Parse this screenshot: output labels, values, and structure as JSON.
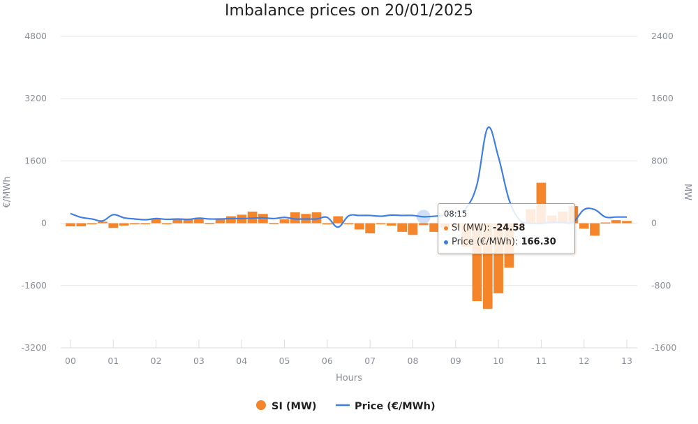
{
  "chart_data": {
    "type": "bar",
    "title": "Imbalance prices on 20/01/2025",
    "xlabel": "Hours",
    "ylabel_left": "€/MWh",
    "ylabel_right": "MW",
    "ylim_left": [
      -3200,
      4800
    ],
    "ylim_right": [
      -1600,
      2400
    ],
    "yticks_left": [
      "4800",
      "3200",
      "1600",
      "0",
      "-1600",
      "-3200"
    ],
    "yticks_right": [
      "2400",
      "1600",
      "800",
      "0",
      "-800",
      "-1600"
    ],
    "xticks": [
      "00",
      "01",
      "02",
      "03",
      "04",
      "05",
      "06",
      "07",
      "08",
      "09",
      "10",
      "11",
      "12",
      "13"
    ],
    "grid": true,
    "legend_position": "bottom-center",
    "times": [
      "00:00",
      "00:15",
      "00:30",
      "00:45",
      "01:00",
      "01:15",
      "01:30",
      "01:45",
      "02:00",
      "02:15",
      "02:30",
      "02:45",
      "03:00",
      "03:15",
      "03:30",
      "03:45",
      "04:00",
      "04:15",
      "04:30",
      "04:45",
      "05:00",
      "05:15",
      "05:30",
      "05:45",
      "06:00",
      "06:15",
      "06:30",
      "06:45",
      "07:00",
      "07:15",
      "07:30",
      "07:45",
      "08:00",
      "08:15",
      "08:30",
      "08:45",
      "09:00",
      "09:15",
      "09:30",
      "09:45",
      "10:00",
      "10:15",
      "10:30",
      "10:45",
      "11:00",
      "11:15",
      "11:30",
      "11:45",
      "12:00",
      "12:15",
      "12:30",
      "12:45",
      "13:00"
    ],
    "series": [
      {
        "name": "SI (MW)",
        "type": "bar",
        "axis": "right",
        "color": "#f5852b",
        "values": [
          -40,
          -40,
          -5,
          20,
          -60,
          -30,
          -5,
          -5,
          50,
          -5,
          60,
          60,
          60,
          5,
          50,
          90,
          110,
          150,
          120,
          5,
          50,
          140,
          120,
          140,
          -15,
          90,
          -5,
          -80,
          -130,
          -5,
          -30,
          -110,
          -150,
          -24.58,
          -110,
          -60,
          -60,
          -300,
          -1000,
          -1100,
          -900,
          -570,
          -60,
          180,
          520,
          100,
          150,
          220,
          -70,
          -160,
          10,
          40,
          30
        ]
      },
      {
        "name": "Price (€/MWh)",
        "type": "line",
        "axis": "left",
        "color": "#3f7fe3",
        "values": [
          250,
          150,
          110,
          60,
          220,
          140,
          110,
          90,
          120,
          100,
          110,
          100,
          130,
          110,
          110,
          120,
          120,
          130,
          140,
          120,
          150,
          110,
          110,
          110,
          150,
          -100,
          190,
          200,
          200,
          180,
          210,
          200,
          200,
          166.3,
          180,
          210,
          250,
          400,
          1000,
          2450,
          1700,
          600,
          80,
          0,
          0,
          20,
          20,
          30,
          350,
          350,
          160,
          160,
          160
        ]
      }
    ],
    "tooltip": {
      "time": "08:15",
      "rows": [
        {
          "label": "SI (MW): ",
          "value": "-24.58",
          "color": "#f5852b"
        },
        {
          "label": "Price (€/MWh): ",
          "value": "166.30",
          "color": "#3f7fe3"
        }
      ]
    },
    "legend": [
      {
        "label": "SI (MW)",
        "symbol": "circle",
        "color": "#f5852b"
      },
      {
        "label": "Price (€/MWh)",
        "symbol": "line",
        "color": "#3f7fe3"
      }
    ]
  }
}
